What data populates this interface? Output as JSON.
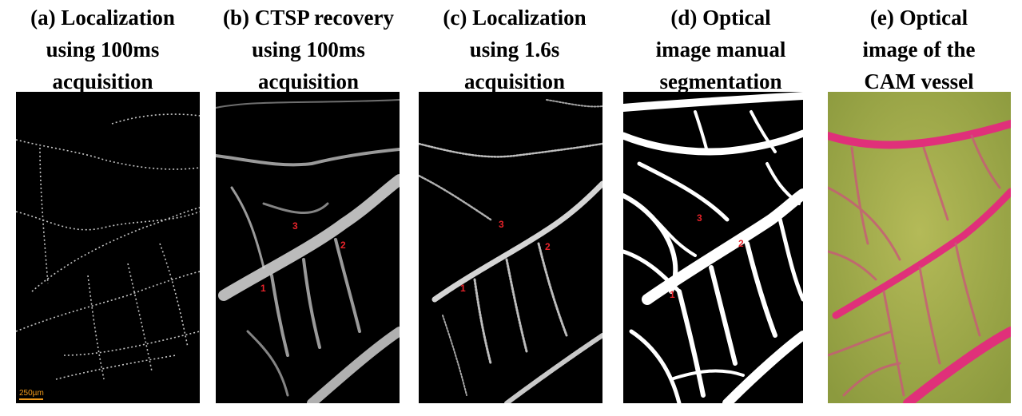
{
  "panels": [
    {
      "lines": [
        "(a)  Localization",
        "using 100ms",
        "acquisition"
      ]
    },
    {
      "lines": [
        "(b)  CTSP recovery",
        "using 100ms",
        "acquisition"
      ]
    },
    {
      "lines": [
        "(c) Localization",
        "using 1.6s",
        "acquisition"
      ]
    },
    {
      "lines": [
        "(d) Optical",
        "image manual",
        "segmentation"
      ]
    },
    {
      "lines": [
        "(e) Optical",
        "image of the",
        "CAM vessel"
      ]
    }
  ],
  "scale_bar": "250µm",
  "markers": [
    "1",
    "2",
    "3"
  ],
  "colors": {
    "vessel_pink": "#e0307a",
    "tissue_green": "#a8b04a",
    "scale_orange": "#f29a1a",
    "marker_red": "#e8232a"
  }
}
